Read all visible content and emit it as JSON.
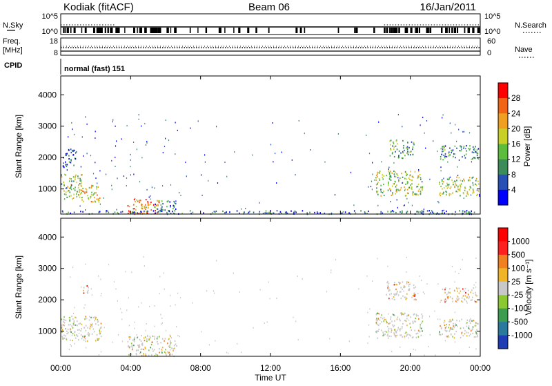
{
  "header": {
    "station": "Kodiak (fitACF)",
    "beam": "Beam 06",
    "date": "16/Jan/2011"
  },
  "noise_panel": {
    "left_label": "N.Sky",
    "right_label": "N.Search",
    "left_ticks": [
      "10^5",
      "10^0"
    ],
    "right_ticks": [
      "10^5",
      "10^0"
    ]
  },
  "freq_panel": {
    "left_label_line1": "Freq.",
    "left_label_line2": "[MHz]",
    "right_label": "Nave",
    "left_ticks": [
      "18",
      "8"
    ],
    "right_ticks": [
      "60",
      "0"
    ]
  },
  "cpid": {
    "label": "CPID",
    "text": "normal (fast) 151"
  },
  "x_axis": {
    "label": "Time UT",
    "ticks": [
      "00:00",
      "04:00",
      "08:00",
      "12:00",
      "16:00",
      "20:00",
      "00:00"
    ]
  },
  "colors": {
    "power_scale": [
      "#0000ff",
      "#2850b4",
      "#3c8c5a",
      "#5cbd3c",
      "#c8d028",
      "#f0a020",
      "#f06414",
      "#ff0000"
    ],
    "velocity_scale": [
      "#1e3cb4",
      "#2a7a9e",
      "#3c9c50",
      "#8cc832",
      "#c8c8c8",
      "#f0b428",
      "#f08020",
      "#ff2020",
      "#ff0000"
    ]
  },
  "chart_data": [
    {
      "type": "heatmap",
      "ylabel": "Slant Range [km]",
      "xlabel": "",
      "y_ticks": [
        "1000",
        "2000",
        "3000",
        "4000"
      ],
      "ylim": [
        200,
        4600
      ],
      "xlim_hours": [
        0,
        24
      ],
      "colorbar": {
        "label": "Power [dB]",
        "ticks": [
          "4",
          "8",
          "12",
          "16",
          "20",
          "24",
          "28"
        ],
        "range": [
          0,
          32
        ]
      },
      "regions": [
        {
          "t0": 0.0,
          "t1": 1.2,
          "r0": 700,
          "r1": 1500,
          "level": 0.45
        },
        {
          "t0": 1.1,
          "t1": 2.3,
          "r0": 600,
          "r1": 1150,
          "level": 0.6
        },
        {
          "t0": 0.1,
          "t1": 0.9,
          "r0": 1700,
          "r1": 2300,
          "level": 0.2
        },
        {
          "t0": 3.8,
          "t1": 5.6,
          "r0": 220,
          "r1": 700,
          "level": 0.75
        },
        {
          "t0": 5.2,
          "t1": 6.6,
          "r0": 300,
          "r1": 650,
          "level": 0.3
        },
        {
          "t0": 18.0,
          "t1": 20.7,
          "r0": 800,
          "r1": 1600,
          "level": 0.5
        },
        {
          "t0": 18.8,
          "t1": 20.2,
          "r0": 2000,
          "r1": 2600,
          "level": 0.35
        },
        {
          "t0": 21.6,
          "t1": 23.9,
          "r0": 800,
          "r1": 1400,
          "level": 0.5
        },
        {
          "t0": 21.7,
          "t1": 23.9,
          "r0": 1950,
          "r1": 2400,
          "level": 0.3
        },
        {
          "t0": 0.0,
          "t1": 24.0,
          "r0": 220,
          "r1": 330,
          "level": 0.2
        }
      ]
    },
    {
      "type": "heatmap",
      "ylabel": "Slant Range [km]",
      "xlabel": "Time UT",
      "y_ticks": [
        "1000",
        "2000",
        "3000",
        "4000"
      ],
      "ylim": [
        200,
        4600
      ],
      "xlim_hours": [
        0,
        24
      ],
      "colorbar": {
        "label": "Velocity [m s⁻¹]",
        "ticks": [
          "1000",
          "500",
          "100",
          "25",
          "-25",
          "-100",
          "-500",
          "-1000"
        ],
        "range": [
          -1200,
          1200
        ]
      },
      "regions": [
        {
          "t0": 0.0,
          "t1": 2.3,
          "r0": 700,
          "r1": 1500,
          "level": 0.5
        },
        {
          "t0": 1.2,
          "t1": 1.6,
          "r0": 2200,
          "r1": 2500,
          "level": 0.75
        },
        {
          "t0": 3.8,
          "t1": 6.6,
          "r0": 220,
          "r1": 900,
          "level": 0.5
        },
        {
          "t0": 18.0,
          "t1": 20.7,
          "r0": 800,
          "r1": 1600,
          "level": 0.5
        },
        {
          "t0": 18.6,
          "t1": 20.3,
          "r0": 2000,
          "r1": 2600,
          "level": 0.7
        },
        {
          "t0": 21.6,
          "t1": 23.9,
          "r0": 800,
          "r1": 1400,
          "level": 0.5
        },
        {
          "t0": 21.7,
          "t1": 23.9,
          "r0": 1950,
          "r1": 2400,
          "level": 0.72
        }
      ]
    }
  ]
}
